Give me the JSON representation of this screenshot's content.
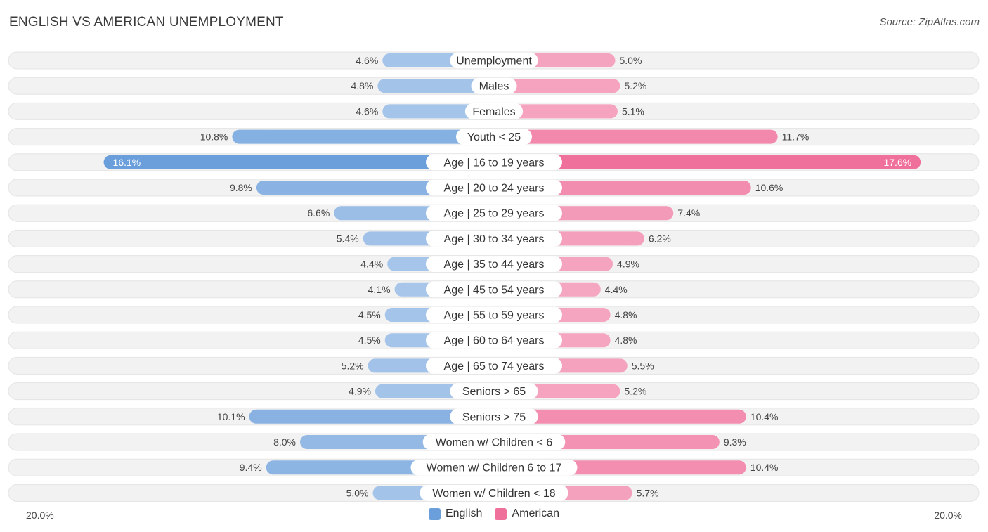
{
  "header": {
    "title": "ENGLISH VS AMERICAN UNEMPLOYMENT",
    "source": "Source: ZipAtlas.com"
  },
  "colors": {
    "english_bar": "#a8c6ea",
    "english_bar_strong": "#6a9fdc",
    "american_bar": "#f5a8c2",
    "american_bar_strong": "#f0709c",
    "row_bg": "#f2f2f2",
    "label_bg": "#ffffff"
  },
  "chart_data": {
    "type": "bar",
    "orientation": "horizontal-diverging",
    "title": "ENGLISH VS AMERICAN UNEMPLOYMENT",
    "xlim": [
      -20,
      20
    ],
    "axis_min_label": "20.0%",
    "axis_max_label": "20.0%",
    "legend_position": "bottom-center",
    "categories": [
      "Unemployment",
      "Males",
      "Females",
      "Youth < 25",
      "Age | 16 to 19 years",
      "Age | 20 to 24 years",
      "Age | 25 to 29 years",
      "Age | 30 to 34 years",
      "Age | 35 to 44 years",
      "Age | 45 to 54 years",
      "Age | 55 to 59 years",
      "Age | 60 to 64 years",
      "Age | 65 to 74 years",
      "Seniors > 65",
      "Seniors > 75",
      "Women w/ Children < 6",
      "Women w/ Children 6 to 17",
      "Women w/ Children < 18"
    ],
    "series": [
      {
        "name": "English",
        "color": "#6a9fdc",
        "values": [
          4.6,
          4.8,
          4.6,
          10.8,
          16.1,
          9.8,
          6.6,
          5.4,
          4.4,
          4.1,
          4.5,
          4.5,
          5.2,
          4.9,
          10.1,
          8.0,
          9.4,
          5.0
        ],
        "labels": [
          "4.6%",
          "4.8%",
          "4.6%",
          "10.8%",
          "16.1%",
          "9.8%",
          "6.6%",
          "5.4%",
          "4.4%",
          "4.1%",
          "4.5%",
          "4.5%",
          "5.2%",
          "4.9%",
          "10.1%",
          "8.0%",
          "9.4%",
          "5.0%"
        ]
      },
      {
        "name": "American",
        "color": "#f0709c",
        "values": [
          5.0,
          5.2,
          5.1,
          11.7,
          17.6,
          10.6,
          7.4,
          6.2,
          4.9,
          4.4,
          4.8,
          4.8,
          5.5,
          5.2,
          10.4,
          9.3,
          10.4,
          5.7
        ],
        "labels": [
          "5.0%",
          "5.2%",
          "5.1%",
          "11.7%",
          "17.6%",
          "10.6%",
          "7.4%",
          "6.2%",
          "4.9%",
          "4.4%",
          "4.8%",
          "4.8%",
          "5.5%",
          "5.2%",
          "10.4%",
          "9.3%",
          "10.4%",
          "5.7%"
        ]
      }
    ]
  }
}
